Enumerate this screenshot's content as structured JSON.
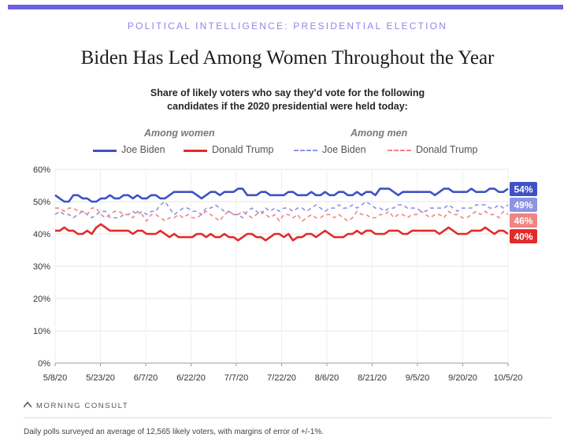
{
  "header": {
    "kicker": "POLITICAL INTELLIGENCE: PRESIDENTIAL ELECTION",
    "title": "Biden Has Led Among Women Throughout the Year",
    "subtitle": "Share of likely voters who say they'd vote for the following candidates if the 2020 presidential were held today:"
  },
  "legend": {
    "women_title": "Among women",
    "men_title": "Among men",
    "items": [
      {
        "label": "Joe Biden",
        "group": "women"
      },
      {
        "label": "Donald Trump",
        "group": "women"
      },
      {
        "label": "Joe Biden",
        "group": "men"
      },
      {
        "label": "Donald Trump",
        "group": "men"
      }
    ]
  },
  "colors": {
    "biden_women": "#3f51c4",
    "trump_women": "#e02b2b",
    "biden_men": "#8d94e4",
    "trump_men": "#ee8585",
    "accent": "#6b5fe3"
  },
  "chart_data": {
    "type": "line",
    "title": "Biden Has Led Among Women Throughout the Year",
    "subtitle": "Share of likely voters who say they'd vote for the following candidates if the 2020 presidential were held today:",
    "x_start": "5/8/20",
    "x_end": "10/5/20",
    "x_ticks": [
      "5/8/20",
      "5/23/20",
      "6/7/20",
      "6/22/20",
      "7/7/20",
      "7/22/20",
      "8/6/20",
      "8/21/20",
      "9/5/20",
      "9/20/20",
      "10/5/20"
    ],
    "y_ticks": [
      "0%",
      "10%",
      "20%",
      "30%",
      "40%",
      "50%",
      "60%"
    ],
    "ylim": [
      0,
      60
    ],
    "grid": true,
    "legend_position": "top",
    "end_labels": [
      "54%",
      "49%",
      "46%",
      "40%"
    ],
    "series": [
      {
        "name": "Joe Biden",
        "group": "Among women",
        "style": "solid",
        "end_label": "54%",
        "values": [
          52,
          51,
          50,
          50,
          52,
          52,
          51,
          51,
          50,
          50,
          51,
          51,
          52,
          51,
          51,
          52,
          52,
          51,
          52,
          51,
          51,
          52,
          52,
          51,
          51,
          52,
          53,
          53,
          53,
          53,
          53,
          52,
          51,
          52,
          53,
          53,
          52,
          53,
          53,
          53,
          54,
          54,
          52,
          52,
          52,
          53,
          53,
          52,
          52,
          52,
          52,
          53,
          53,
          52,
          52,
          52,
          53,
          52,
          52,
          53,
          52,
          52,
          53,
          53,
          52,
          52,
          53,
          52,
          53,
          53,
          52,
          54,
          54,
          54,
          53,
          52,
          53,
          53,
          53,
          53,
          53,
          53,
          53,
          52,
          53,
          54,
          54,
          53,
          53,
          53,
          53,
          54,
          53,
          53,
          53,
          54,
          54,
          53,
          53,
          54
        ]
      },
      {
        "name": "Donald Trump",
        "group": "Among women",
        "style": "solid",
        "end_label": "40%",
        "values": [
          41,
          41,
          42,
          41,
          41,
          40,
          40,
          41,
          40,
          42,
          43,
          42,
          41,
          41,
          41,
          41,
          41,
          40,
          41,
          41,
          40,
          40,
          40,
          41,
          40,
          39,
          40,
          39,
          39,
          39,
          39,
          40,
          40,
          39,
          40,
          39,
          39,
          40,
          39,
          39,
          38,
          39,
          40,
          40,
          39,
          39,
          38,
          39,
          40,
          40,
          39,
          40,
          38,
          39,
          39,
          40,
          40,
          39,
          40,
          41,
          40,
          39,
          39,
          39,
          40,
          40,
          41,
          40,
          41,
          41,
          40,
          40,
          40,
          41,
          41,
          41,
          40,
          40,
          41,
          41,
          41,
          41,
          41,
          41,
          40,
          41,
          42,
          41,
          40,
          40,
          40,
          41,
          41,
          41,
          42,
          41,
          40,
          41,
          41,
          40
        ]
      },
      {
        "name": "Joe Biden",
        "group": "Among men",
        "style": "dashed",
        "end_label": "49%",
        "values": [
          46,
          47,
          46,
          46,
          45,
          46,
          47,
          46,
          45,
          46,
          47,
          47,
          45,
          45,
          45,
          46,
          46,
          47,
          46,
          47,
          46,
          47,
          47,
          49,
          50,
          48,
          46,
          47,
          48,
          48,
          47,
          47,
          46,
          48,
          48,
          49,
          48,
          47,
          47,
          46,
          46,
          45,
          47,
          48,
          47,
          46,
          48,
          47,
          48,
          47,
          48,
          48,
          47,
          48,
          48,
          47,
          48,
          49,
          48,
          47,
          48,
          48,
          49,
          48,
          48,
          49,
          48,
          49,
          50,
          49,
          48,
          48,
          47,
          48,
          48,
          49,
          49,
          48,
          48,
          48,
          47,
          47,
          48,
          48,
          48,
          48,
          49,
          48,
          47,
          48,
          48,
          48,
          49,
          49,
          49,
          48,
          48,
          49,
          48,
          49
        ]
      },
      {
        "name": "Donald Trump",
        "group": "Among men",
        "style": "dashed",
        "end_label": "46%",
        "values": [
          48,
          48,
          47,
          48,
          48,
          47,
          47,
          46,
          48,
          48,
          46,
          45,
          46,
          47,
          47,
          46,
          46,
          45,
          47,
          46,
          44,
          46,
          46,
          45,
          44,
          45,
          45,
          46,
          45,
          46,
          45,
          45,
          46,
          47,
          46,
          45,
          44,
          46,
          47,
          46,
          46,
          47,
          46,
          45,
          46,
          47,
          46,
          45,
          46,
          44,
          46,
          46,
          45,
          46,
          44,
          45,
          46,
          45,
          45,
          46,
          46,
          45,
          46,
          45,
          44,
          45,
          47,
          46,
          46,
          45,
          45,
          46,
          46,
          47,
          45,
          46,
          46,
          45,
          46,
          46,
          47,
          46,
          45,
          46,
          46,
          45,
          47,
          46,
          46,
          45,
          45,
          46,
          47,
          46,
          47,
          46,
          46,
          45,
          47,
          46
        ]
      }
    ]
  },
  "source": {
    "logo_text": "MORNING CONSULT",
    "footnote": "Daily polls surveyed an average of 12,565 likely voters, with margins of error of +/-1%."
  }
}
